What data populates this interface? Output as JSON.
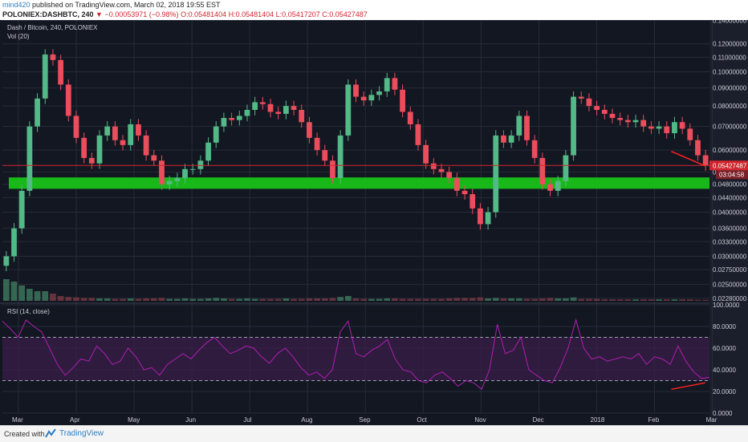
{
  "header": {
    "user": "mind420",
    "published": "published on TradingView.com, March 02, 2018 19:55 EST",
    "symbol_line": "POLONIEX:DASHBTC, 240",
    "change": "−0.00053971 (−0.98%)",
    "ohlc": "O:0.05481404 H:0.05481404 L:0.05417207 C:0.05427487"
  },
  "footer": {
    "created": "Created with",
    "brand": "TradingView"
  },
  "colors": {
    "background": "#131722",
    "grid": "#262b38",
    "up": "#53b987",
    "down": "#eb4d5c",
    "support_zone": "#19c119",
    "rsi_line": "#b11fb1",
    "rsi_band": "#3a1e4a",
    "price_line": "#d0262f",
    "annotation": "#ff2222"
  },
  "chart_data": [
    {
      "type": "candlestick",
      "title": "Dash / Bitcoin, 240, POLONIEX",
      "volume_label": "Vol (20)",
      "ylim": [
        0.0222,
        0.1402
      ],
      "y_scale": "log",
      "y_ticks": [
        {
          "v": 0.14,
          "label": "0.14000000"
        },
        {
          "v": 0.12,
          "label": "0.12000000"
        },
        {
          "v": 0.11,
          "label": "0.11000000"
        },
        {
          "v": 0.1,
          "label": "0.10000000"
        },
        {
          "v": 0.09,
          "label": "0.09000000"
        },
        {
          "v": 0.08,
          "label": "0.08000000"
        },
        {
          "v": 0.07,
          "label": "0.07000000"
        },
        {
          "v": 0.06,
          "label": "0.06000000"
        },
        {
          "v": 0.052,
          "label": "0.05200000"
        },
        {
          "v": 0.048,
          "label": "0.04800000"
        },
        {
          "v": 0.044,
          "label": "0.04400000"
        },
        {
          "v": 0.04,
          "label": "0.04000000"
        },
        {
          "v": 0.036,
          "label": "0.03600000"
        },
        {
          "v": 0.033,
          "label": "0.03300000"
        },
        {
          "v": 0.03,
          "label": "0.03000000"
        },
        {
          "v": 0.0275,
          "label": "0.02750000"
        },
        {
          "v": 0.025,
          "label": "0.02500000"
        },
        {
          "v": 0.0228,
          "label": "0.02280000"
        }
      ],
      "x_labels": [
        "Mar",
        "Apr",
        "May",
        "Jun",
        "Jul",
        "Aug",
        "Sep",
        "Oct",
        "Nov",
        "Dec",
        "2018",
        "Feb",
        "Mar"
      ],
      "last_price": {
        "value": 0.05427487,
        "label": "0.05427487",
        "countdown": "03:04:58"
      },
      "support_zone": [
        0.0466,
        0.0502
      ],
      "series_close": [
        0.03,
        0.036,
        0.046,
        0.07,
        0.084,
        0.112,
        0.108,
        0.092,
        0.075,
        0.065,
        0.057,
        0.055,
        0.066,
        0.07,
        0.064,
        0.062,
        0.071,
        0.066,
        0.058,
        0.056,
        0.048,
        0.049,
        0.05,
        0.053,
        0.053,
        0.056,
        0.063,
        0.07,
        0.074,
        0.073,
        0.075,
        0.078,
        0.082,
        0.081,
        0.077,
        0.076,
        0.08,
        0.078,
        0.072,
        0.065,
        0.06,
        0.056,
        0.05,
        0.066,
        0.092,
        0.085,
        0.083,
        0.086,
        0.088,
        0.096,
        0.089,
        0.077,
        0.071,
        0.062,
        0.055,
        0.053,
        0.052,
        0.05,
        0.046,
        0.045,
        0.041,
        0.037,
        0.04,
        0.066,
        0.063,
        0.066,
        0.075,
        0.064,
        0.057,
        0.048,
        0.046,
        0.049,
        0.058,
        0.085,
        0.084,
        0.08,
        0.078,
        0.076,
        0.074,
        0.073,
        0.072,
        0.073,
        0.07,
        0.069,
        0.07,
        0.067,
        0.072,
        0.069,
        0.064,
        0.058,
        0.0543
      ],
      "volume_relative": [
        0.45,
        0.4,
        0.32,
        0.25,
        0.2,
        0.2,
        0.15,
        0.1,
        0.08,
        0.07,
        0.06,
        0.06,
        0.05,
        0.05,
        0.04,
        0.04,
        0.05,
        0.04,
        0.05,
        0.05,
        0.06,
        0.04,
        0.04,
        0.05,
        0.04,
        0.04,
        0.05,
        0.06,
        0.05,
        0.04,
        0.04,
        0.05,
        0.04,
        0.04,
        0.04,
        0.04,
        0.05,
        0.04,
        0.04,
        0.05,
        0.05,
        0.05,
        0.06,
        0.08,
        0.1,
        0.05,
        0.04,
        0.04,
        0.04,
        0.05,
        0.05,
        0.04,
        0.04,
        0.04,
        0.04,
        0.04,
        0.04,
        0.05,
        0.06,
        0.06,
        0.06,
        0.07,
        0.05,
        0.06,
        0.05,
        0.05,
        0.05,
        0.04,
        0.04,
        0.05,
        0.06,
        0.05,
        0.05,
        0.07,
        0.04,
        0.04,
        0.04,
        0.03,
        0.03,
        0.03,
        0.03,
        0.03,
        0.03,
        0.03,
        0.03,
        0.03,
        0.03,
        0.03,
        0.03,
        0.02,
        0.02
      ],
      "trend_annotation": {
        "from": {
          "x_index": 0.946,
          "y": 0.0595
        },
        "to": {
          "x_index": 0.994,
          "y": 0.0541
        }
      }
    },
    {
      "type": "line",
      "title": "RSI (14, close)",
      "ylim": [
        0,
        100
      ],
      "y_ticks": [
        {
          "v": 100,
          "label": "100.0000"
        },
        {
          "v": 80,
          "label": "80.0000"
        },
        {
          "v": 60,
          "label": "60.0000"
        },
        {
          "v": 40,
          "label": "40.0000"
        },
        {
          "v": 20,
          "label": "20.0000"
        },
        {
          "v": 0,
          "label": "0.0000"
        }
      ],
      "band": [
        30,
        70
      ],
      "values": [
        85,
        78,
        70,
        86,
        80,
        75,
        60,
        45,
        35,
        42,
        50,
        48,
        62,
        55,
        45,
        48,
        60,
        52,
        40,
        42,
        35,
        45,
        50,
        55,
        50,
        58,
        65,
        70,
        62,
        55,
        58,
        62,
        60,
        52,
        46,
        55,
        60,
        52,
        42,
        35,
        38,
        32,
        40,
        75,
        85,
        55,
        52,
        58,
        62,
        68,
        50,
        40,
        38,
        30,
        28,
        35,
        38,
        32,
        25,
        30,
        28,
        22,
        40,
        82,
        55,
        58,
        70,
        40,
        35,
        30,
        28,
        42,
        60,
        86,
        60,
        50,
        52,
        48,
        50,
        52,
        50,
        55,
        45,
        52,
        50,
        45,
        62,
        48,
        38,
        32,
        33
      ],
      "divergence_annotation": {
        "from": {
          "x_index": 0.946,
          "y": 22
        },
        "to": {
          "x_index": 0.994,
          "y": 28
        }
      }
    }
  ]
}
